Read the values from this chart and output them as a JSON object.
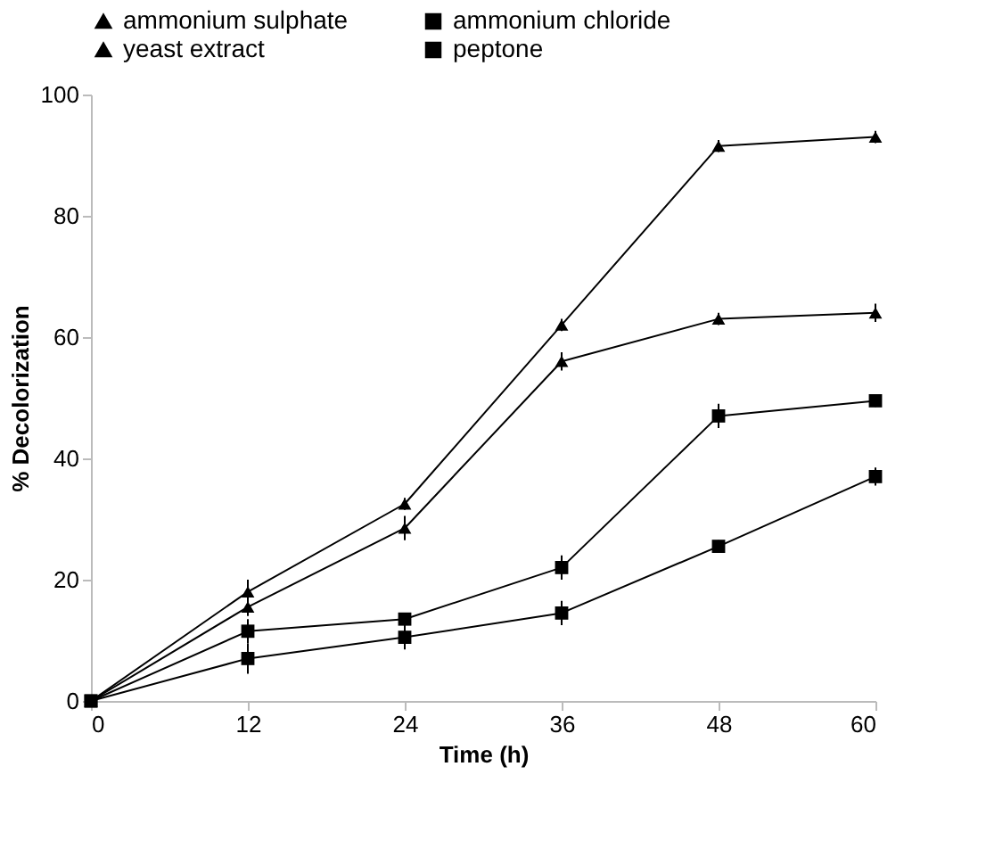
{
  "chart_data": {
    "type": "line",
    "xlabel": "Time (h)",
    "ylabel": "% Decolorization",
    "x": [
      0,
      12,
      24,
      36,
      48,
      60
    ],
    "xlim": [
      0,
      60
    ],
    "xticks": [
      0,
      12,
      24,
      36,
      48,
      60
    ],
    "ylim": [
      0,
      100
    ],
    "yticks": [
      0,
      20,
      40,
      60,
      80,
      100
    ],
    "grid": false,
    "legend": "top",
    "line_style": "solid",
    "series": [
      {
        "name": "ammonium sulphate",
        "color": "#000000",
        "marker": "triangle",
        "values": [
          0,
          15.5,
          28.5,
          56,
          63,
          64
        ],
        "errors": [
          null,
          1.5,
          2,
          1.5,
          1,
          1.5
        ]
      },
      {
        "name": "ammonium chloride",
        "color": "#000000",
        "marker": "square",
        "values": [
          0,
          7,
          10.5,
          14.5,
          25.5,
          37
        ],
        "errors": [
          null,
          2.5,
          2,
          2,
          1,
          1.5
        ]
      },
      {
        "name": "yeast extract",
        "color": "#000000",
        "marker": "triangle",
        "values": [
          0,
          18,
          32.5,
          62,
          91.5,
          93
        ],
        "errors": [
          null,
          2,
          1,
          1,
          1,
          1
        ]
      },
      {
        "name": "peptone",
        "color": "#000000",
        "marker": "square",
        "values": [
          0,
          11.5,
          13.5,
          22,
          47,
          49.5
        ],
        "errors": [
          null,
          2,
          1,
          2,
          2,
          1
        ]
      }
    ]
  }
}
